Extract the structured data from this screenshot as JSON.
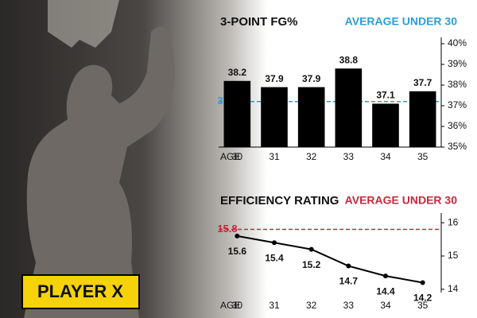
{
  "label": "PLAYER X",
  "chart_data": [
    {
      "type": "bar",
      "title": "3-POINT FG%",
      "annotation": "AVERAGE UNDER 30",
      "xlabel": "AGE",
      "categories": [
        "30",
        "31",
        "32",
        "33",
        "34",
        "35"
      ],
      "values": [
        38.2,
        37.9,
        37.9,
        38.8,
        37.1,
        37.7
      ],
      "color": "#000000",
      "reference": 37.2,
      "reference_color": "#2a9fd6",
      "ylim": [
        35,
        40
      ],
      "yticks": [
        {
          "value": 35,
          "label": "35%"
        },
        {
          "value": 36,
          "label": "36%"
        },
        {
          "value": 37,
          "label": "37%"
        },
        {
          "value": 38,
          "label": "38%"
        },
        {
          "value": 39,
          "label": "39%"
        },
        {
          "value": 40,
          "label": "40%"
        }
      ]
    },
    {
      "type": "line",
      "title": "EFFICIENCY RATING",
      "annotation": "AVERAGE UNDER 30",
      "xlabel": "AGE",
      "categories": [
        "30",
        "31",
        "32",
        "33",
        "34",
        "35"
      ],
      "values": [
        15.6,
        15.4,
        15.2,
        14.7,
        14.4,
        14.2
      ],
      "color": "#000000",
      "reference": 15.8,
      "reference_color": "#c8283c",
      "ylim": [
        13.9,
        16.1
      ],
      "yticks": [
        14,
        15,
        16
      ]
    }
  ]
}
